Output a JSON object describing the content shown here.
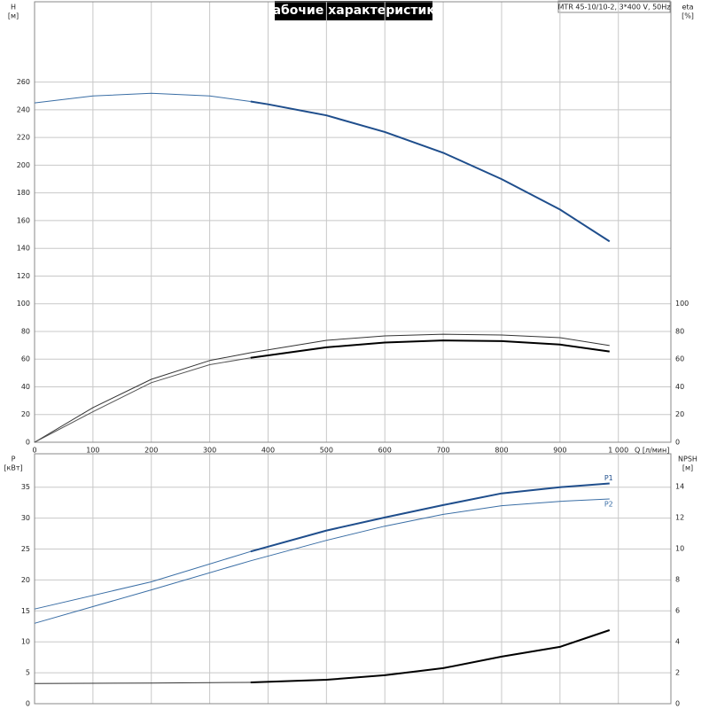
{
  "title": "Рабочие характеристики",
  "info": "MTR 45-10/10-2, 3*400 V, 50Hz",
  "chart_data": [
    {
      "type": "line",
      "x_label": "Q [л/мин]",
      "y_label": "H",
      "y_unit": "[м]",
      "y2_label": "eta",
      "y2_unit": "[%]",
      "xlim": [
        0,
        1090
      ],
      "ylim": [
        0,
        318
      ],
      "y2lim": [
        0,
        318
      ],
      "xticks": [
        0,
        100,
        200,
        300,
        400,
        500,
        600,
        700,
        800,
        900,
        {
          "value": 1000,
          "label": "1 000"
        }
      ],
      "yticks": [
        0,
        20,
        40,
        60,
        80,
        100,
        120,
        140,
        160,
        180,
        200,
        220,
        240,
        260
      ],
      "y2ticks": [
        0,
        20,
        40,
        60,
        80,
        100
      ],
      "grid": true,
      "series": [
        {
          "color": "#3a6ea5",
          "width": 1,
          "x": [
            0,
            100,
            200,
            300,
            370
          ],
          "values": [
            245,
            250,
            252,
            250,
            246
          ]
        },
        {
          "color": "#1f4e8c",
          "width": 2,
          "x": [
            370,
            400,
            500,
            600,
            700,
            800,
            900,
            985
          ],
          "values": [
            246,
            244,
            236,
            224,
            209,
            190,
            168,
            145
          ]
        },
        {
          "color": "#333333",
          "width": 1,
          "axis": "y2",
          "x": [
            0,
            100,
            200,
            300,
            370,
            500,
            600,
            700,
            800,
            900,
            985
          ],
          "values": [
            0,
            25,
            45.4,
            59,
            64.6,
            73.6,
            76.8,
            78,
            77.4,
            75.5,
            69.8
          ]
        },
        {
          "color": "#555555",
          "width": 1,
          "axis": "y2",
          "x": [
            0,
            100,
            200,
            300,
            370
          ],
          "values": [
            0,
            22,
            43,
            56,
            61
          ]
        },
        {
          "color": "#000000",
          "width": 2,
          "axis": "y2",
          "x": [
            370,
            500,
            600,
            700,
            800,
            900,
            985
          ],
          "values": [
            61,
            68.5,
            72,
            73.5,
            73,
            70.5,
            65.5
          ]
        }
      ]
    },
    {
      "type": "line",
      "y_label": "P",
      "y_unit": "[кВт]",
      "y2_label": "NPSH",
      "y2_unit": "[м]",
      "xlim": [
        0,
        1090
      ],
      "ylim": [
        0,
        40.4
      ],
      "y2lim": [
        0,
        16.1
      ],
      "yticks": [
        0,
        5,
        10,
        15,
        20,
        25,
        30,
        35
      ],
      "y2ticks": [
        0,
        2,
        4,
        6,
        8,
        10,
        12,
        14
      ],
      "grid": true,
      "series": [
        {
          "color": "#3a6ea5",
          "width": 1,
          "x": [
            0,
            200,
            370
          ],
          "values": [
            15.3,
            19.7,
            24.6
          ]
        },
        {
          "name": "P1",
          "color": "#1f4e8c",
          "width": 2,
          "x": [
            370,
            500,
            600,
            700,
            800,
            900,
            985
          ],
          "values": [
            24.6,
            28,
            30.1,
            32.1,
            34,
            35,
            35.6
          ]
        },
        {
          "name": "P2",
          "color": "#3a6ea5",
          "width": 1,
          "x": [
            0,
            200,
            370,
            500,
            600,
            700,
            800,
            900,
            985
          ],
          "values": [
            13,
            18.4,
            23.1,
            26.4,
            28.7,
            30.6,
            32,
            32.7,
            33.1
          ]
        },
        {
          "color": "#333333",
          "width": 1,
          "axis": "y2",
          "x": [
            0,
            200,
            370
          ],
          "values": [
            1.3,
            1.33,
            1.37
          ]
        },
        {
          "color": "#000000",
          "width": 2,
          "axis": "y2",
          "x": [
            370,
            500,
            600,
            700,
            800,
            900,
            985
          ],
          "values": [
            1.37,
            1.54,
            1.83,
            2.29,
            3.03,
            3.66,
            4.74
          ]
        }
      ]
    }
  ]
}
